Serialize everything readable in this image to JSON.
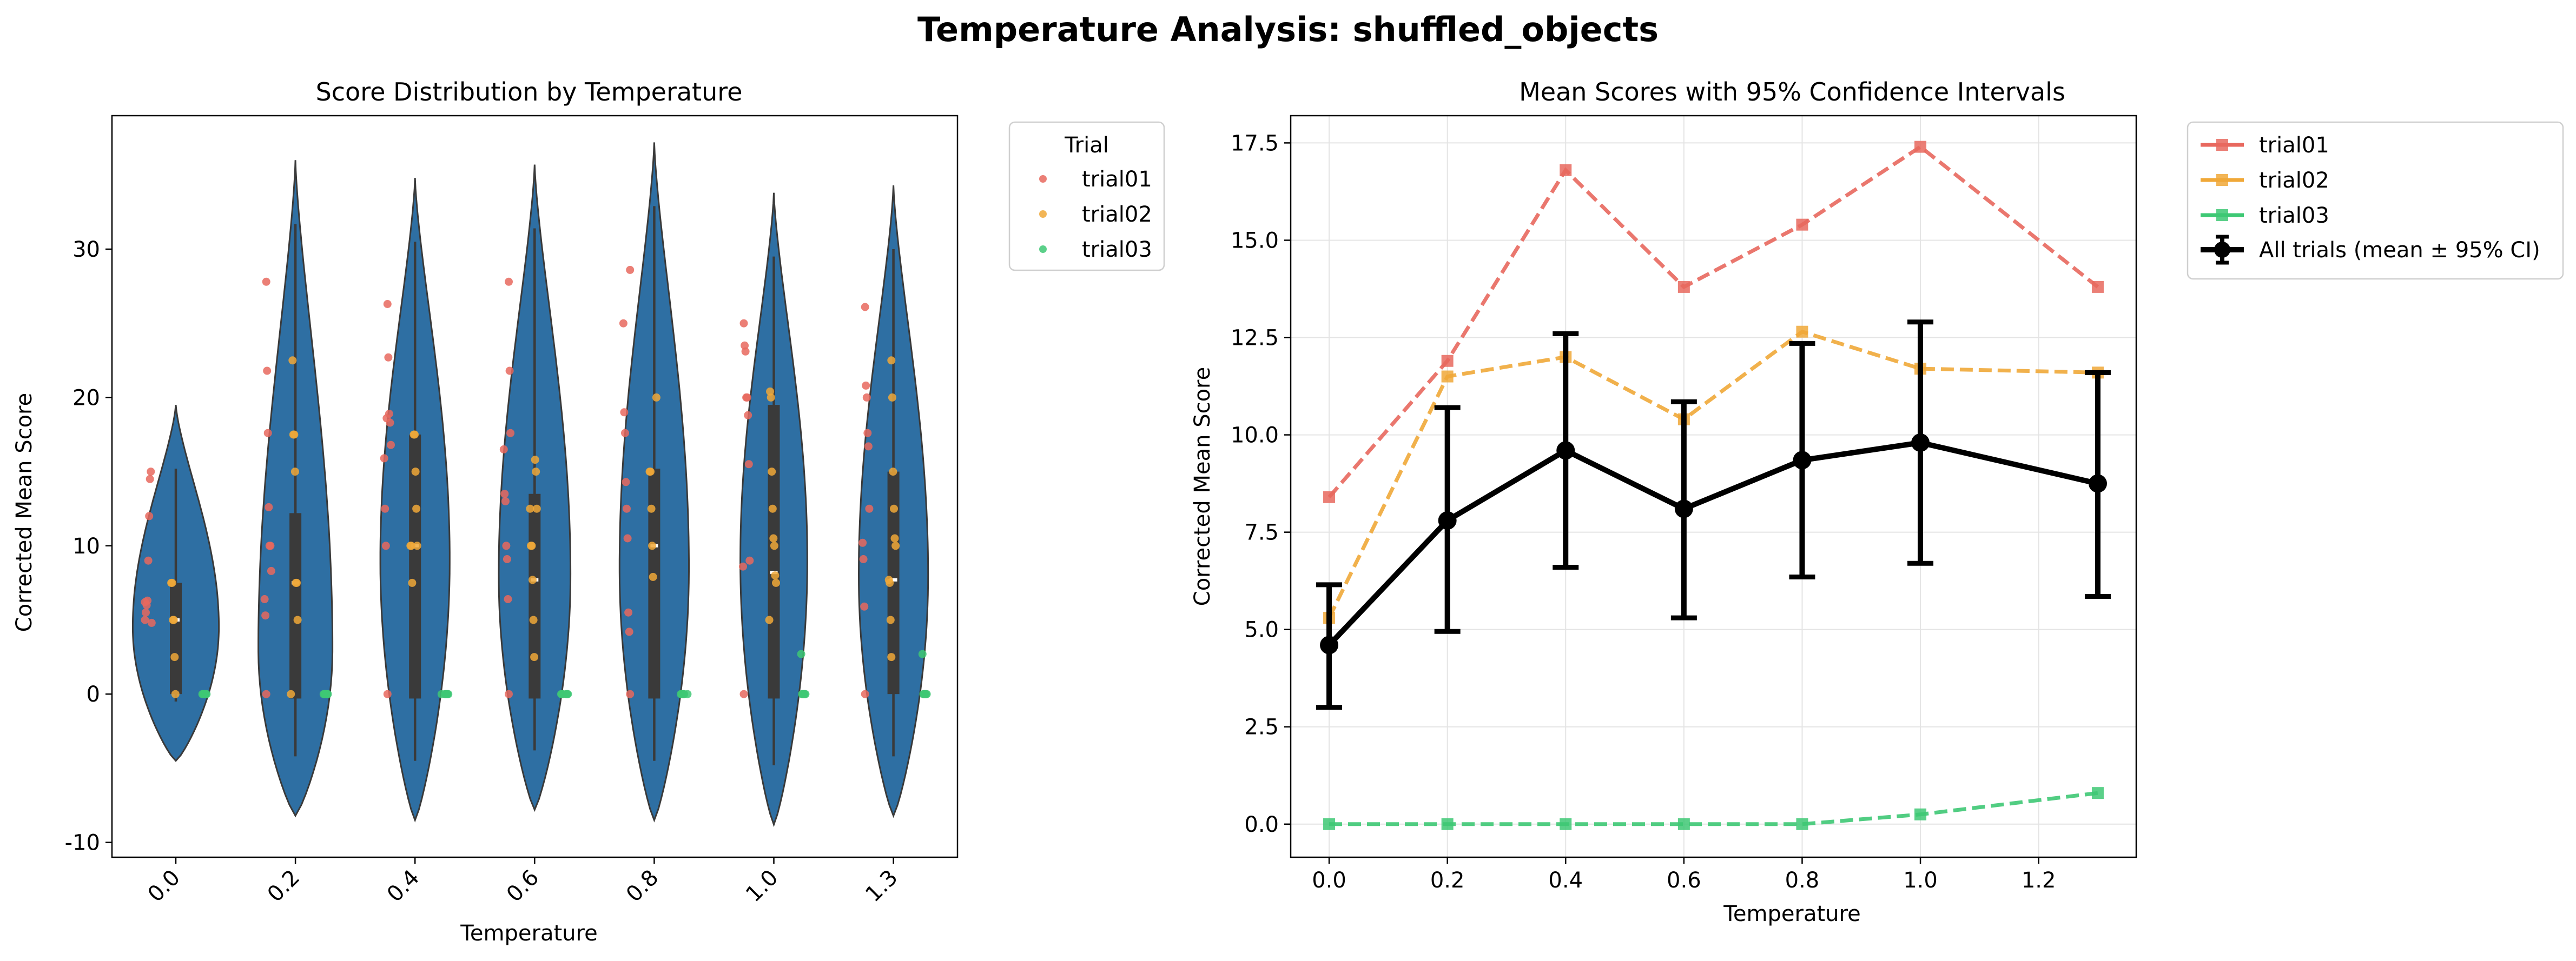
{
  "suptitle": "Temperature Analysis: shuffled_objects",
  "colors": {
    "trial01": "#e8685e",
    "trial02": "#f0a838",
    "trial03": "#3ec874",
    "violin": "#2e6fa3",
    "all": "#000000"
  },
  "chart_data": [
    {
      "type": "violin",
      "title": "Score Distribution by Temperature",
      "xlabel": "Temperature",
      "ylabel": "Corrected Mean Score",
      "categories": [
        "0.0",
        "0.2",
        "0.4",
        "0.6",
        "0.8",
        "1.0",
        "1.3"
      ],
      "ylim": [
        -11,
        39
      ],
      "yticks": [
        -10,
        0,
        10,
        20,
        30
      ],
      "legend": {
        "title": "Trial",
        "entries": [
          "trial01",
          "trial02",
          "trial03"
        ],
        "placement": "outside-upper-right"
      },
      "violins": [
        {
          "min": -4.5,
          "max": 19.5,
          "mode": 4.5,
          "width": 0.72,
          "q1": 0.0,
          "median": 5.0,
          "q3": 7.5
        },
        {
          "min": -8.2,
          "max": 36.0,
          "mode": 3.0,
          "width": 0.62,
          "q1": -0.3,
          "median": 7.5,
          "q3": 12.2
        },
        {
          "min": -8.5,
          "max": 34.8,
          "mode": 9.0,
          "width": 0.58,
          "q1": -0.3,
          "median": 10.0,
          "q3": 17.5
        },
        {
          "min": -7.8,
          "max": 35.7,
          "mode": 8.0,
          "width": 0.6,
          "q1": -0.3,
          "median": 7.7,
          "q3": 13.5
        },
        {
          "min": -8.5,
          "max": 37.2,
          "mode": 8.5,
          "width": 0.58,
          "q1": -0.3,
          "median": 10.0,
          "q3": 15.2
        },
        {
          "min": -8.8,
          "max": 33.8,
          "mode": 9.0,
          "width": 0.56,
          "q1": -0.3,
          "median": 8.2,
          "q3": 19.5
        },
        {
          "min": -8.2,
          "max": 34.3,
          "mode": 8.0,
          "width": 0.58,
          "q1": 0.0,
          "median": 7.7,
          "q3": 15.0
        }
      ],
      "points": {
        "trial01": [
          [
            5.0,
            5.5,
            6.0,
            6.3,
            9.0,
            12.0,
            14.5,
            15.0,
            4.8,
            6.2
          ],
          [
            27.8,
            21.8,
            17.6,
            12.6,
            10.0,
            10.0,
            8.3,
            6.4,
            5.3,
            0.0
          ],
          [
            26.3,
            22.7,
            18.9,
            18.3,
            16.8,
            15.9,
            12.5,
            10.0,
            18.6,
            0.0
          ],
          [
            27.8,
            21.8,
            17.6,
            16.5,
            13.5,
            13.0,
            10.0,
            9.1,
            6.4,
            0.0
          ],
          [
            28.6,
            25.0,
            19.0,
            17.6,
            14.3,
            12.5,
            10.5,
            5.5,
            4.2,
            0.0
          ],
          [
            25.0,
            23.5,
            23.1,
            20.0,
            20.0,
            18.8,
            15.5,
            9.0,
            8.6,
            0.0
          ],
          [
            26.1,
            20.8,
            20.0,
            17.6,
            16.7,
            12.5,
            10.2,
            9.1,
            5.9,
            0.0
          ]
        ],
        "trial02": [
          [
            7.5,
            7.5,
            5.0,
            5.0,
            2.5,
            0.0
          ],
          [
            22.5,
            17.5,
            17.5,
            15.0,
            7.5,
            7.5,
            5.0,
            0.0
          ],
          [
            17.5,
            17.5,
            15.0,
            12.5,
            10.0,
            10.0,
            10.0,
            7.5
          ],
          [
            15.8,
            15.0,
            12.5,
            12.5,
            10.0,
            10.0,
            7.7,
            5.0,
            2.5
          ],
          [
            20.0,
            15.0,
            15.0,
            12.5,
            10.0,
            7.9
          ],
          [
            20.4,
            20.0,
            15.0,
            12.5,
            10.5,
            10.0,
            8.0,
            7.5,
            5.0
          ],
          [
            22.5,
            20.0,
            15.0,
            12.5,
            10.5,
            10.0,
            7.7,
            7.5,
            5.0,
            2.5
          ]
        ],
        "trial03": [
          [
            0.0,
            0.0,
            0.0,
            0.0,
            0.0,
            0.0
          ],
          [
            0.0,
            0.0,
            0.0,
            0.0,
            0.0,
            0.0
          ],
          [
            0.0,
            0.0,
            0.0,
            0.0,
            0.0,
            0.0
          ],
          [
            0.0,
            0.0,
            0.0,
            0.0,
            0.0,
            0.0
          ],
          [
            0.0,
            0.0,
            0.0,
            0.0,
            0.0,
            0.0
          ],
          [
            2.7,
            0.0,
            0.0,
            0.0,
            0.0,
            0.0
          ],
          [
            2.7,
            0.0,
            0.0,
            0.0,
            0.0,
            0.0
          ]
        ]
      }
    },
    {
      "type": "line",
      "title": "Mean Scores with 95% Confidence Intervals",
      "xlabel": "Temperature",
      "ylabel": "Corrected Mean Score",
      "xlim": [
        -0.065,
        1.365
      ],
      "ylim": [
        -0.85,
        18.2
      ],
      "xticks": [
        0.0,
        0.2,
        0.4,
        0.6,
        0.8,
        1.0,
        1.2
      ],
      "yticks": [
        0.0,
        2.5,
        5.0,
        7.5,
        10.0,
        12.5,
        15.0,
        17.5
      ],
      "x": [
        0.0,
        0.2,
        0.4,
        0.6,
        0.8,
        1.0,
        1.3
      ],
      "legend": {
        "placement": "outside-upper-right"
      },
      "series": [
        {
          "name": "trial01",
          "values": [
            8.4,
            11.9,
            16.8,
            13.8,
            15.4,
            17.4,
            13.8
          ]
        },
        {
          "name": "trial02",
          "values": [
            5.3,
            11.5,
            12.0,
            10.4,
            12.65,
            11.7,
            11.6
          ]
        },
        {
          "name": "trial03",
          "values": [
            0.0,
            0.0,
            0.0,
            0.0,
            0.0,
            0.25,
            0.8
          ]
        },
        {
          "name": "All trials (mean ± 95% CI)",
          "values": [
            4.6,
            7.8,
            9.6,
            8.1,
            9.35,
            9.8,
            8.75
          ],
          "ci_low": [
            3.0,
            4.95,
            6.6,
            5.3,
            6.35,
            6.7,
            5.85
          ],
          "ci_high": [
            6.15,
            10.7,
            12.6,
            10.85,
            12.35,
            12.9,
            11.6
          ]
        }
      ]
    }
  ]
}
